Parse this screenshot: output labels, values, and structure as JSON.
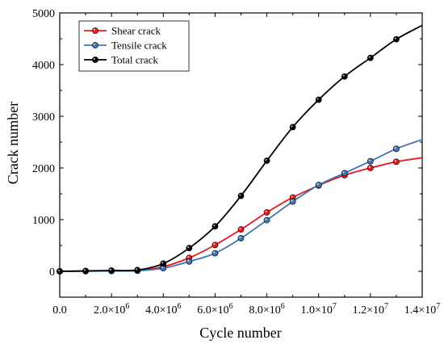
{
  "chart_data": {
    "type": "line",
    "title": "",
    "xlabel": "Cycle number",
    "ylabel": "Crack number",
    "xlim": [
      0,
      14000000
    ],
    "ylim": [
      -500,
      5000
    ],
    "x_ticks": [
      0,
      2000000,
      4000000,
      6000000,
      8000000,
      10000000,
      12000000,
      14000000
    ],
    "x_tick_labels": [
      {
        "mant": "0.0",
        "exp": ""
      },
      {
        "mant": "2.0×10",
        "exp": "6"
      },
      {
        "mant": "4.0×10",
        "exp": "6"
      },
      {
        "mant": "6.0×10",
        "exp": "6"
      },
      {
        "mant": "8.0×10",
        "exp": "6"
      },
      {
        "mant": "1.0×10",
        "exp": "7"
      },
      {
        "mant": "1.2×10",
        "exp": "7"
      },
      {
        "mant": "1.4×10",
        "exp": "7"
      }
    ],
    "y_ticks": [
      0,
      1000,
      2000,
      3000,
      4000,
      5000
    ],
    "y_tick_labels": [
      "0",
      "1000",
      "2000",
      "3000",
      "4000",
      "5000"
    ],
    "grid": false,
    "legend_position": "top-left",
    "series": [
      {
        "name": "Shear crack",
        "color": "#e41a1c",
        "x": [
          0,
          1000000,
          2000000,
          3000000,
          4000000,
          5000000,
          6000000,
          7000000,
          8000000,
          9000000,
          10000000,
          11000000,
          12000000,
          13000000,
          14000000
        ],
        "y": [
          0,
          5,
          10,
          15,
          90,
          260,
          510,
          810,
          1140,
          1430,
          1660,
          1860,
          2000,
          2120,
          2200
        ],
        "markers": [
          0,
          1000000,
          2000000,
          3000000,
          4000000,
          5000000,
          6000000,
          7000000,
          8000000,
          9000000,
          10000000,
          11000000,
          12000000,
          13000000
        ]
      },
      {
        "name": "Tensile crack",
        "color": "#3f74b0",
        "x": [
          0,
          1000000,
          2000000,
          3000000,
          4000000,
          5000000,
          6000000,
          7000000,
          8000000,
          9000000,
          10000000,
          11000000,
          12000000,
          13000000,
          14000000
        ],
        "y": [
          0,
          3,
          6,
          10,
          60,
          190,
          350,
          640,
          990,
          1350,
          1670,
          1900,
          2130,
          2370,
          2550
        ],
        "markers": [
          0,
          1000000,
          2000000,
          3000000,
          4000000,
          5000000,
          6000000,
          7000000,
          8000000,
          9000000,
          10000000,
          11000000,
          12000000,
          13000000
        ]
      },
      {
        "name": "Total crack",
        "color": "#000000",
        "x": [
          0,
          1000000,
          2000000,
          3000000,
          4000000,
          5000000,
          6000000,
          7000000,
          8000000,
          9000000,
          10000000,
          11000000,
          12000000,
          13000000,
          14000000
        ],
        "y": [
          0,
          8,
          16,
          25,
          150,
          450,
          870,
          1460,
          2140,
          2790,
          3320,
          3770,
          4130,
          4490,
          4760
        ],
        "markers": [
          0,
          1000000,
          2000000,
          3000000,
          4000000,
          5000000,
          6000000,
          7000000,
          8000000,
          9000000,
          10000000,
          11000000,
          12000000,
          13000000
        ]
      }
    ]
  }
}
